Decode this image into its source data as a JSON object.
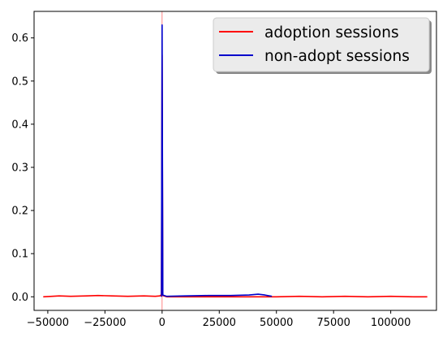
{
  "chart_data": {
    "type": "line",
    "title": "",
    "xlabel": "",
    "ylabel": "",
    "xlim": [
      -56000,
      120000
    ],
    "ylim": [
      -0.0315,
      0.6615
    ],
    "grid": false,
    "legend_position": "top-right",
    "xticks": [
      {
        "value": -50000,
        "label": "−50000"
      },
      {
        "value": -25000,
        "label": "−25000"
      },
      {
        "value": 0,
        "label": "0"
      },
      {
        "value": 25000,
        "label": "25000"
      },
      {
        "value": 50000,
        "label": "50000"
      },
      {
        "value": 75000,
        "label": "75000"
      },
      {
        "value": 100000,
        "label": "100000"
      }
    ],
    "yticks": [
      {
        "value": 0.0,
        "label": "0.0"
      },
      {
        "value": 0.1,
        "label": "0.1"
      },
      {
        "value": 0.2,
        "label": "0.2"
      },
      {
        "value": 0.3,
        "label": "0.3"
      },
      {
        "value": 0.4,
        "label": "0.4"
      },
      {
        "value": 0.5,
        "label": "0.5"
      },
      {
        "value": 0.6,
        "label": "0.6"
      }
    ],
    "vline": {
      "x": 0,
      "color": "#ff0000"
    },
    "series": [
      {
        "name": "adoption sessions",
        "color": "#ff0000",
        "x": [
          -52000,
          -45000,
          -40000,
          -33000,
          -28000,
          -22000,
          -15000,
          -8000,
          -3000,
          -1000,
          -300,
          0,
          300,
          2000,
          50000,
          60000,
          70000,
          80000,
          90000,
          100000,
          110000,
          116000
        ],
        "y": [
          0.0,
          0.002,
          0.001,
          0.002,
          0.003,
          0.002,
          0.001,
          0.002,
          0.001,
          0.002,
          0.005,
          0.56,
          0.003,
          0.0,
          0.0,
          0.001,
          0.0,
          0.001,
          0.0,
          0.001,
          0.0,
          0.0
        ]
      },
      {
        "name": "non-adopt sessions",
        "color": "#0000cc",
        "x": [
          -300,
          0,
          300,
          2000,
          10000,
          20000,
          30000,
          38000,
          42000,
          45000,
          48000
        ],
        "y": [
          0.0,
          0.63,
          0.004,
          0.001,
          0.002,
          0.003,
          0.003,
          0.004,
          0.006,
          0.004,
          0.001
        ]
      }
    ]
  }
}
